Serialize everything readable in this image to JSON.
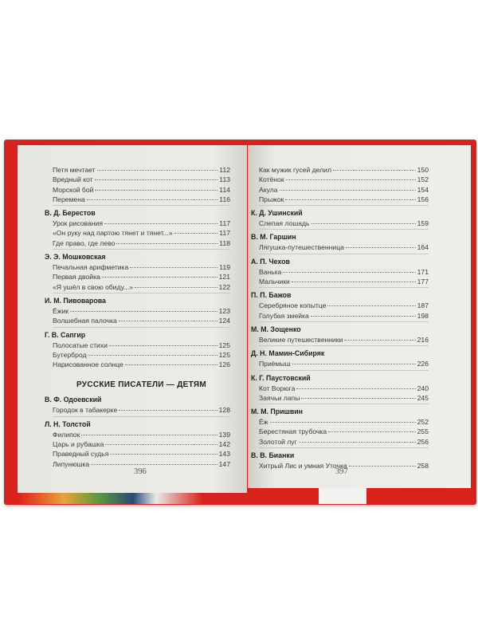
{
  "left_page": {
    "page_number": "396",
    "groups_before": [
      {
        "author": "",
        "items": [
          {
            "title": "Петя мечтает",
            "page": "112"
          },
          {
            "title": "Вредный кот",
            "page": "113"
          },
          {
            "title": "Морской бой",
            "page": "114"
          },
          {
            "title": "Перемена",
            "page": "116"
          }
        ]
      },
      {
        "author": "В. Д. Берестов",
        "items": [
          {
            "title": "Урок рисования",
            "page": "117"
          },
          {
            "title": "«Он руку над партою тянет и тянет...»",
            "page": "117"
          },
          {
            "title": "Где право, где лево",
            "page": "118"
          }
        ]
      },
      {
        "author": "Э. Э. Мошковская",
        "items": [
          {
            "title": "Печальная арифметика",
            "page": "119"
          },
          {
            "title": "Первая двойка",
            "page": "121"
          },
          {
            "title": "«Я ушёл в свою обиду...»",
            "page": "122"
          }
        ]
      },
      {
        "author": "И. М. Пивоварова",
        "items": [
          {
            "title": "Ёжик",
            "page": "123"
          },
          {
            "title": "Волшебная палочка",
            "page": "124"
          }
        ]
      },
      {
        "author": "Г. В. Сапгир",
        "items": [
          {
            "title": "Полосатые стихи",
            "page": "125"
          },
          {
            "title": "Бутерброд",
            "page": "125"
          },
          {
            "title": "Нарисованное солнце",
            "page": "126"
          }
        ]
      }
    ],
    "section_heading": "РУССКИЕ ПИСАТЕЛИ — ДЕТЯМ",
    "groups_after": [
      {
        "author": "В. Ф. Одоевский",
        "items": [
          {
            "title": "Городок в табакерке",
            "page": "128"
          }
        ]
      },
      {
        "author": "Л. Н. Толстой",
        "items": [
          {
            "title": "Филипок",
            "page": "139"
          },
          {
            "title": "Царь и рубашка",
            "page": "142"
          },
          {
            "title": "Праведный судья",
            "page": "143"
          },
          {
            "title": "Липунюшка",
            "page": "147"
          }
        ]
      }
    ]
  },
  "right_page": {
    "page_number": "397",
    "groups": [
      {
        "author": "",
        "items": [
          {
            "title": "Как мужик гусей делил",
            "page": "150"
          },
          {
            "title": "Котёнок",
            "page": "152"
          },
          {
            "title": "Акула",
            "page": "154"
          },
          {
            "title": "Прыжок",
            "page": "156"
          }
        ]
      },
      {
        "author": "К. Д. Ушинский",
        "items": [
          {
            "title": "Слепая лошадь",
            "page": "159"
          }
        ]
      },
      {
        "author": "В. М. Гаршин",
        "items": [
          {
            "title": "Лягушка-путешественница",
            "page": "164"
          }
        ]
      },
      {
        "author": "А. П. Чехов",
        "items": [
          {
            "title": "Ванька",
            "page": "171"
          },
          {
            "title": "Мальчики",
            "page": "177"
          }
        ]
      },
      {
        "author": "П. П. Бажов",
        "items": [
          {
            "title": "Серебряное копытце",
            "page": "187"
          },
          {
            "title": "Голубая змейка",
            "page": "198"
          }
        ]
      },
      {
        "author": "М. М. Зощенко",
        "items": [
          {
            "title": "Великие путешественники",
            "page": "216"
          }
        ]
      },
      {
        "author": "Д. Н. Мамин-Сибиряк",
        "items": [
          {
            "title": "Приёмыш",
            "page": "226"
          }
        ]
      },
      {
        "author": "К. Г. Паустовский",
        "items": [
          {
            "title": "Кот Ворюга",
            "page": "240"
          },
          {
            "title": "Заячьи лапы",
            "page": "245"
          }
        ]
      },
      {
        "author": "М. М. Пришвин",
        "items": [
          {
            "title": "Ёж",
            "page": "252"
          },
          {
            "title": "Берестяная трубочка",
            "page": "255"
          },
          {
            "title": "Золотой луг",
            "page": "256"
          }
        ]
      },
      {
        "author": "В. В. Бианки",
        "items": [
          {
            "title": "Хитрый Лис и умная Уточка",
            "page": "258"
          }
        ]
      }
    ]
  },
  "colors": {
    "cover": "#d9221b",
    "paper": "#ecebe6",
    "text": "#3a3a3a"
  }
}
